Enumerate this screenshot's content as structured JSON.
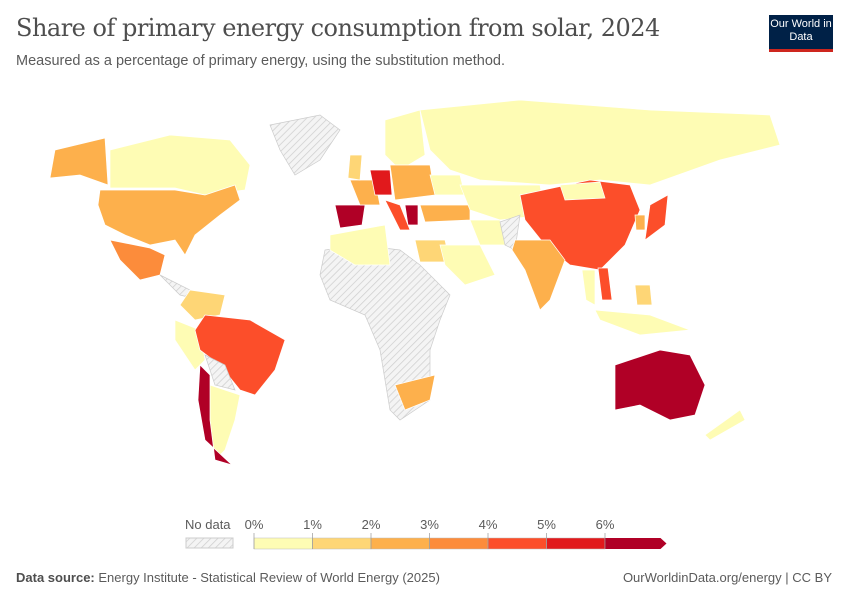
{
  "header": {
    "title": "Share of primary energy consumption from solar, 2024",
    "subtitle": "Measured as a percentage of primary energy, using the substitution method.",
    "logo": "Our World in Data"
  },
  "footer": {
    "source_label": "Data source:",
    "source": "Energy Institute - Statistical Review of World Energy (2025)",
    "link": "OurWorldinData.org/energy | CC BY"
  },
  "chart_data": {
    "type": "choropleth",
    "title": "Share of primary energy consumption from solar, 2024",
    "unit": "%",
    "legend": {
      "no_data_label": "No data",
      "ticks": [
        "0%",
        "1%",
        "2%",
        "3%",
        "4%",
        "5%",
        "6%"
      ],
      "bins": [
        0,
        1,
        2,
        3,
        4,
        5,
        6
      ],
      "colors": [
        "#fefcb4",
        "#fed676",
        "#fdb04c",
        "#fc8c3b",
        "#fc4e2a",
        "#e1191c",
        "#b00026"
      ],
      "no_data_color": "#e8e8e8"
    },
    "countries": [
      {
        "name": "Canada",
        "value": 0.6
      },
      {
        "name": "Alaska (United States)",
        "value": 2.6
      },
      {
        "name": "United States",
        "value": 2.6
      },
      {
        "name": "Mexico",
        "value": 3.2
      },
      {
        "name": "Greenland",
        "value": null
      },
      {
        "name": "Central America",
        "value": null
      },
      {
        "name": "Colombia/Venezuela",
        "value": 1.5
      },
      {
        "name": "Peru",
        "value": 0.6
      },
      {
        "name": "Brazil",
        "value": 4.3
      },
      {
        "name": "Bolivia/Paraguay",
        "value": null
      },
      {
        "name": "Argentina",
        "value": 0.8
      },
      {
        "name": "Chile",
        "value": 6.5
      },
      {
        "name": "Africa (other)",
        "value": null
      },
      {
        "name": "Algeria/Morocco",
        "value": 0.5
      },
      {
        "name": "Egypt",
        "value": 1.5
      },
      {
        "name": "South Africa",
        "value": 2.5
      },
      {
        "name": "Spain",
        "value": 6.2
      },
      {
        "name": "France",
        "value": 2.3
      },
      {
        "name": "Germany",
        "value": 5.5
      },
      {
        "name": "United Kingdom",
        "value": 1.5
      },
      {
        "name": "Italy",
        "value": 4.2
      },
      {
        "name": "Scandinavia",
        "value": 0.5
      },
      {
        "name": "Poland/Eastern Europe",
        "value": 2.5
      },
      {
        "name": "Ukraine",
        "value": 0.5
      },
      {
        "name": "Turkey",
        "value": 2.8
      },
      {
        "name": "Greece",
        "value": 6.3
      },
      {
        "name": "Russia",
        "value": 0.1
      },
      {
        "name": "Kazakhstan/Central Asia",
        "value": 0.4
      },
      {
        "name": "Iran",
        "value": 0.3
      },
      {
        "name": "Saudi Arabia",
        "value": 0.5
      },
      {
        "name": "Pakistan/Afghanistan",
        "value": null
      },
      {
        "name": "China",
        "value": 4.6
      },
      {
        "name": "India",
        "value": 2.6
      },
      {
        "name": "Vietnam",
        "value": 4.5
      },
      {
        "name": "Thailand",
        "value": 0.9
      },
      {
        "name": "Japan",
        "value": 4.8
      },
      {
        "name": "South Korea",
        "value": 2.8
      },
      {
        "name": "Mongolia",
        "value": 0.5
      },
      {
        "name": "Indonesia",
        "value": 0.2
      },
      {
        "name": "Philippines",
        "value": 1.8
      },
      {
        "name": "Australia",
        "value": 6.8
      },
      {
        "name": "New Zealand",
        "value": 0.5
      }
    ]
  }
}
